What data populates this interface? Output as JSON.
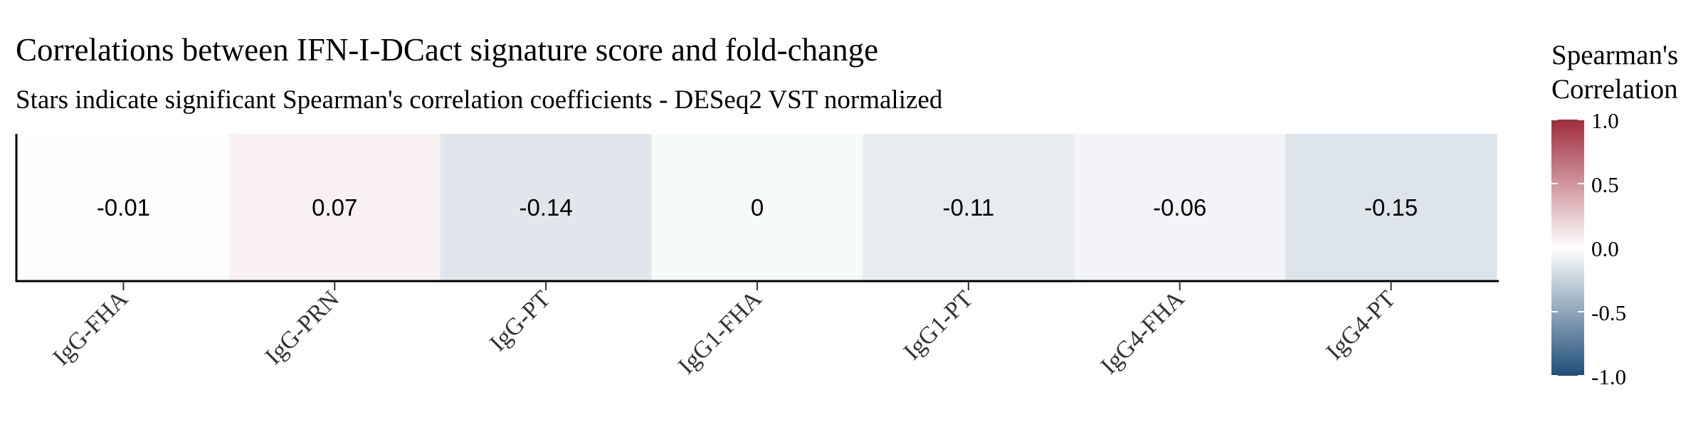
{
  "chart_data": {
    "type": "heatmap",
    "title": "Correlations between IFN-I-DCact signature score and fold-change",
    "subtitle": "Stars indicate significant Spearman's correlation coefficients - DESeq2 VST normalized",
    "categories": [
      "IgG-FHA",
      "IgG-PRN",
      "IgG-PT",
      "IgG1-FHA",
      "IgG1-PT",
      "IgG4-FHA",
      "IgG4-PT"
    ],
    "values": [
      -0.01,
      0.07,
      -0.14,
      0,
      -0.11,
      -0.06,
      -0.15
    ],
    "labels": [
      "-0.01",
      "0.07",
      "-0.14",
      "0",
      "-0.11",
      "-0.06",
      "-0.15"
    ],
    "legend": {
      "title_line1": "Spearman's",
      "title_line2": "Correlation",
      "position": "right",
      "range": [
        -1.0,
        1.0
      ],
      "ticks": [
        "1.0",
        "0.5",
        "0.0",
        "-0.5",
        "-1.0"
      ],
      "colors": {
        "low": "#1f4e79",
        "mid": "#ffffff",
        "high": "#a02c3c"
      }
    }
  }
}
